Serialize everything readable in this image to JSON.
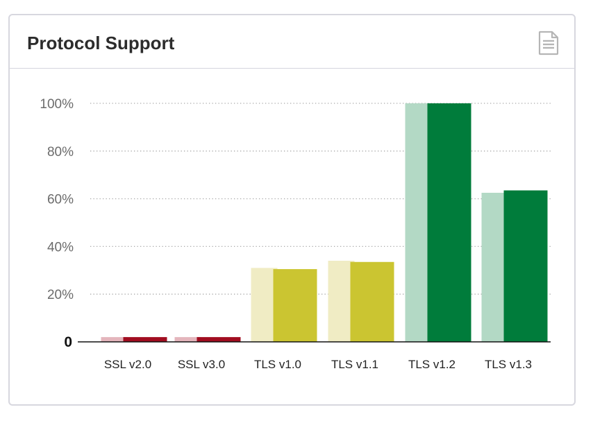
{
  "card": {
    "title": "Protocol Support",
    "icon": "document-icon"
  },
  "colors": {
    "ssl_light": "#e4b5bc",
    "ssl_dark": "#a10d20",
    "tls_old_light": "#f0ecc4",
    "tls_old_dark": "#cbc531",
    "tls_new_light": "#b3d9c5",
    "tls_new_dark": "#007c3b",
    "grid": "#a8a8a8",
    "axis": "#111111"
  },
  "chart_data": {
    "type": "bar",
    "title": "",
    "xlabel": "",
    "ylabel": "",
    "ylim": [
      0,
      100
    ],
    "yticks": [
      "0",
      "20%",
      "40%",
      "60%",
      "80%",
      "100%"
    ],
    "categories": [
      "SSL v2.0",
      "SSL v3.0",
      "TLS v1.0",
      "TLS v1.1",
      "TLS v1.2",
      "TLS v1.3"
    ],
    "series": [
      {
        "values": [
          2,
          2,
          31,
          34,
          100,
          62.5
        ]
      },
      {
        "values": [
          2,
          2,
          30.5,
          33.5,
          100,
          63.5
        ]
      }
    ],
    "grid": true,
    "legend": "none"
  }
}
